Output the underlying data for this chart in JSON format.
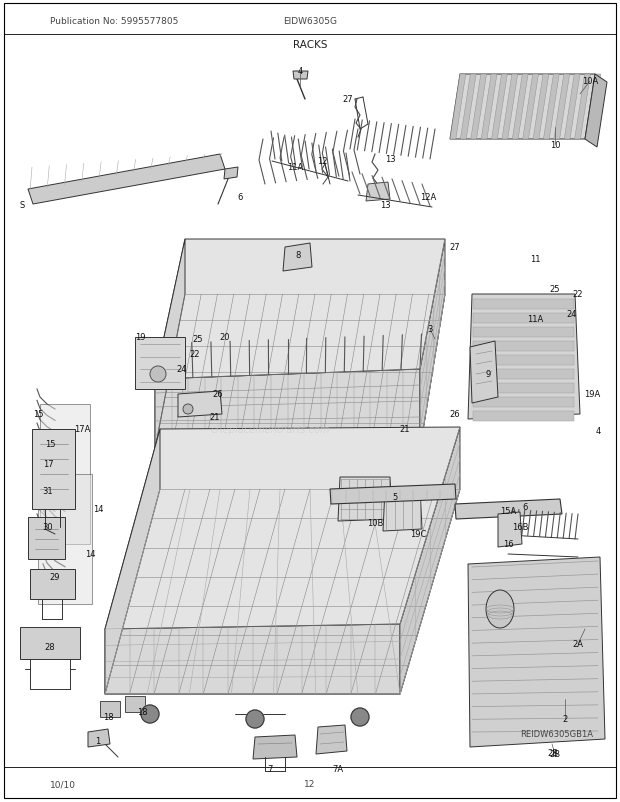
{
  "title": "RACKS",
  "pub_no": "Publication No: 5995577805",
  "model": "EIDW6305G",
  "footer_left": "10/10",
  "footer_center": "12",
  "ref_id": "REIDW6305GB1A",
  "bg_color": "#ffffff",
  "fig_width": 6.2,
  "fig_height": 8.03,
  "dpi": 100
}
